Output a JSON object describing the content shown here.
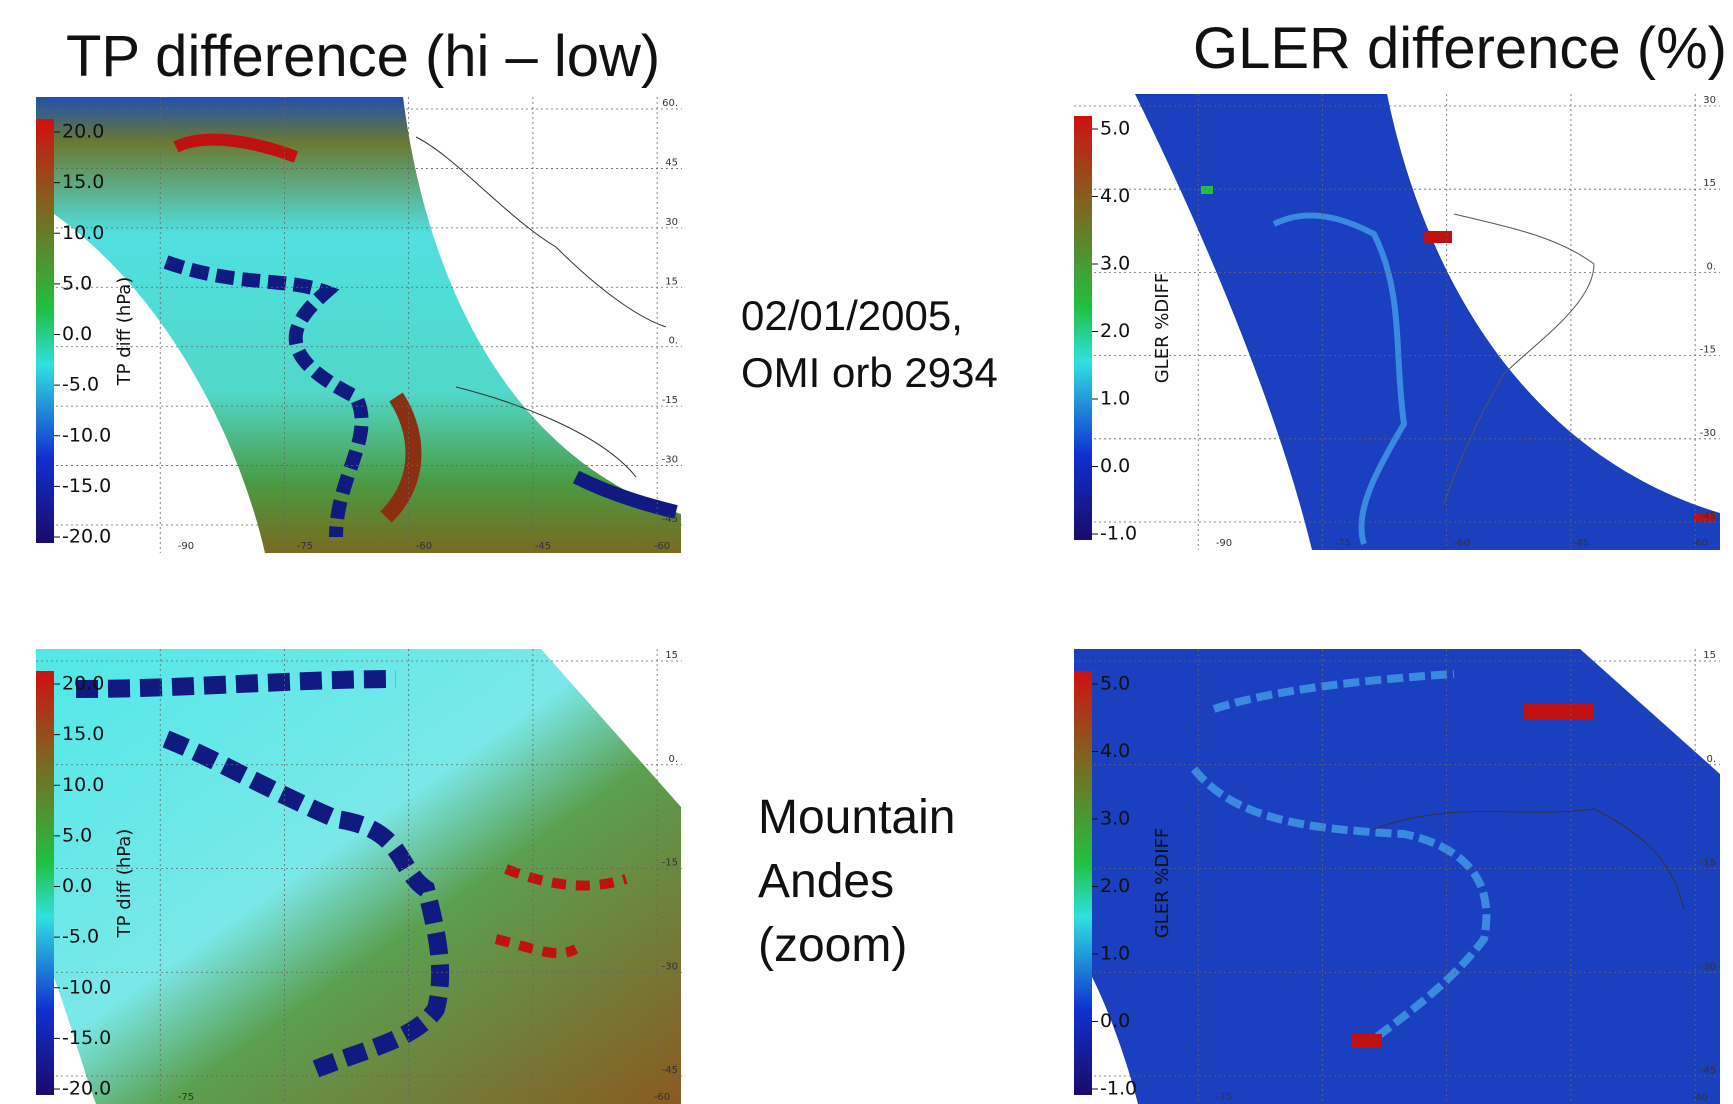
{
  "titles": [
    "TP difference (hi – low)",
    "GLER difference (%)"
  ],
  "notes": [
    [
      "02/01/2005,",
      "OMI orb 2934"
    ],
    [
      "Mountain",
      "Andes",
      "(zoom)"
    ]
  ],
  "panels": [
    {
      "colorbar_label": "TP diff (hPa)",
      "colorbar_ticks": [
        {
          "value": 20,
          "label": "20.0"
        },
        {
          "value": 15,
          "label": "15.0"
        },
        {
          "value": 10,
          "label": "10.0"
        },
        {
          "value": 5,
          "label": "5.0"
        },
        {
          "value": 0,
          "label": "0.0"
        },
        {
          "value": -5,
          "label": "-5.0"
        },
        {
          "value": -10,
          "label": "-10.0"
        },
        {
          "value": -15,
          "label": "-15.0"
        },
        {
          "value": -20,
          "label": "-20.0"
        }
      ],
      "lat_labels": [
        "60.",
        "45",
        "30",
        "15",
        "0.",
        "-15",
        "-30",
        "-45"
      ],
      "lon_labels": [
        "-90",
        "-75",
        "-60",
        "-45",
        "-60"
      ]
    },
    {
      "colorbar_label": "GLER %DIFF",
      "colorbar_ticks": [
        {
          "value": 5,
          "label": "5.0"
        },
        {
          "value": 4,
          "label": "4.0"
        },
        {
          "value": 3,
          "label": "3.0"
        },
        {
          "value": 2,
          "label": "2.0"
        },
        {
          "value": 1,
          "label": "1.0"
        },
        {
          "value": 0,
          "label": "0.0"
        },
        {
          "value": -1,
          "label": "-1.0"
        }
      ],
      "lat_labels": [
        "30",
        "15",
        "0.",
        "-15",
        "-30",
        "-45"
      ],
      "lon_labels": [
        "-90",
        "-75",
        "-60",
        "-45",
        "-60"
      ]
    },
    {
      "colorbar_label": "TP diff (hPa)",
      "colorbar_ticks": [
        {
          "value": 20,
          "label": "20.0"
        },
        {
          "value": 15,
          "label": "15.0"
        },
        {
          "value": 10,
          "label": "10.0"
        },
        {
          "value": 5,
          "label": "5.0"
        },
        {
          "value": 0,
          "label": "0.0"
        },
        {
          "value": -5,
          "label": "-5.0"
        },
        {
          "value": -10,
          "label": "-10.0"
        },
        {
          "value": -15,
          "label": "-15.0"
        },
        {
          "value": -20,
          "label": "-20.0"
        }
      ],
      "lat_labels": [
        "15",
        "0.",
        "-15",
        "-30",
        "-45"
      ],
      "lon_labels": [
        "-75",
        "-60"
      ]
    },
    {
      "colorbar_label": "GLER %DIFF",
      "colorbar_ticks": [
        {
          "value": 5,
          "label": "5.0"
        },
        {
          "value": 4,
          "label": "4.0"
        },
        {
          "value": 3,
          "label": "3.0"
        },
        {
          "value": 2,
          "label": "2.0"
        },
        {
          "value": 1,
          "label": "1.0"
        },
        {
          "value": 0,
          "label": "0.0"
        },
        {
          "value": -1,
          "label": "-1.0"
        }
      ],
      "lat_labels": [
        "15",
        "0.",
        "-15",
        "-30",
        "-45"
      ],
      "lon_labels": [
        "-75",
        "-60"
      ]
    }
  ]
}
